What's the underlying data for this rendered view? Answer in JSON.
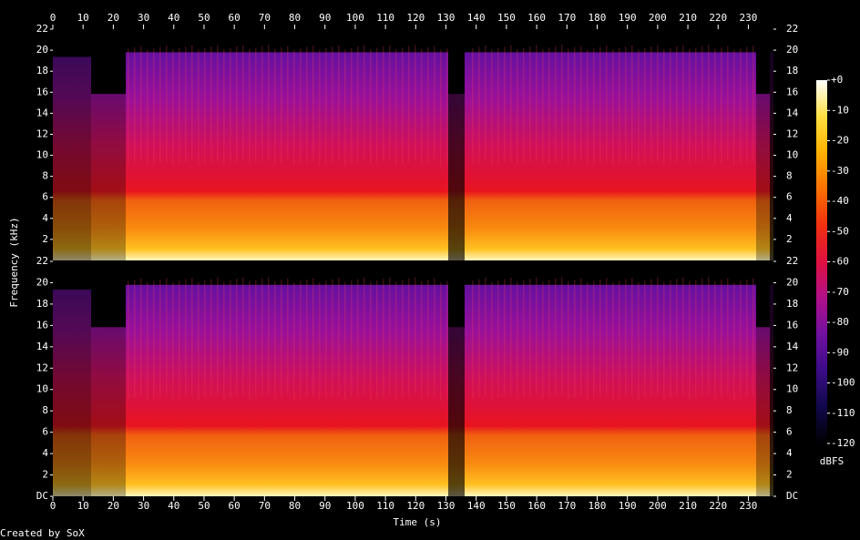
{
  "chart_data": {
    "type": "spectrogram",
    "xlabel": "Time (s)",
    "ylabel": "Frequency (kHz)",
    "xlim": [
      0,
      238.3
    ],
    "xticks": [
      0,
      10,
      20,
      30,
      40,
      50,
      60,
      70,
      80,
      90,
      100,
      110,
      120,
      130,
      140,
      150,
      160,
      170,
      180,
      190,
      200,
      210,
      220,
      230
    ],
    "panels": [
      {
        "ylim": [
          0,
          22
        ],
        "yticks": [
          2,
          4,
          6,
          8,
          10,
          12,
          14,
          16,
          18,
          20,
          22
        ]
      },
      {
        "ylim": [
          0,
          22
        ],
        "yticks": [
          {
            "value": 0,
            "label": "DC"
          },
          2,
          4,
          6,
          8,
          10,
          12,
          14,
          16,
          18,
          20,
          22
        ]
      }
    ],
    "colorbar": {
      "label": "dBFS",
      "lim": [
        -120,
        0
      ],
      "ticks": [
        {
          "value": 0,
          "label": "+0"
        },
        -10,
        -20,
        -30,
        -40,
        -50,
        -60,
        -70,
        -80,
        -90,
        -100,
        -110,
        -120
      ],
      "colors": [
        "#000000",
        "#10084a",
        "#3a0c86",
        "#7010a0",
        "#b0108a",
        "#e01040",
        "#f03010",
        "#fa7000",
        "#ffb000",
        "#ffe040",
        "#ffffff"
      ]
    }
  },
  "footer": "Created by SoX"
}
